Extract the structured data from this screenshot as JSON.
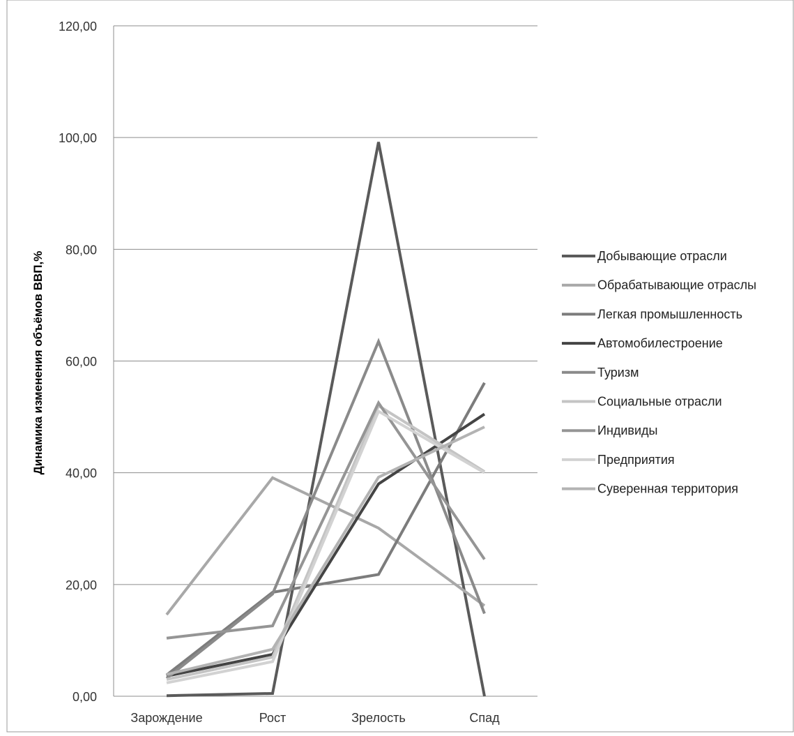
{
  "chart_data": {
    "type": "line",
    "ylabel": "Динамика изменения объёмов ВВП,%",
    "xlabel": "",
    "categories": [
      "Зарождение",
      "Рост",
      "Зрелость",
      "Спад"
    ],
    "y_ticks": [
      "0,00",
      "20,00",
      "40,00",
      "60,00",
      "80,00",
      "100,00",
      "120,00"
    ],
    "ylim": [
      0,
      120
    ],
    "grid": true,
    "legend_position": "right",
    "series": [
      {
        "name": "Добывающие отрасли",
        "color": "#5a5a5a",
        "values": [
          0.1,
          0.5,
          99.2,
          0.0
        ]
      },
      {
        "name": "Обрабатывающие отраслы",
        "color": "#a8a8a8",
        "values": [
          14.6,
          39.1,
          30.1,
          16.2
        ]
      },
      {
        "name": "Легкая промышленность",
        "color": "#7c7c7c",
        "values": [
          3.8,
          18.6,
          21.8,
          56.1
        ]
      },
      {
        "name": "Автомобилестроение",
        "color": "#444444",
        "values": [
          3.6,
          7.5,
          38.0,
          50.5
        ]
      },
      {
        "name": "Туризм",
        "color": "#8a8a8a",
        "values": [
          3.2,
          18.3,
          63.5,
          14.8
        ]
      },
      {
        "name": "Социальные отрасли",
        "color": "#c4c4c4",
        "values": [
          3.0,
          7.0,
          52.0,
          40.2
        ]
      },
      {
        "name": "Индивиды",
        "color": "#959595",
        "values": [
          10.4,
          12.6,
          52.5,
          24.5
        ]
      },
      {
        "name": "Предприятия",
        "color": "#d2d2d2",
        "values": [
          2.4,
          6.2,
          51.0,
          40.0
        ]
      },
      {
        "name": "Суверенная территория",
        "color": "#b3b3b3",
        "values": [
          3.9,
          8.4,
          39.2,
          48.2
        ]
      }
    ]
  }
}
